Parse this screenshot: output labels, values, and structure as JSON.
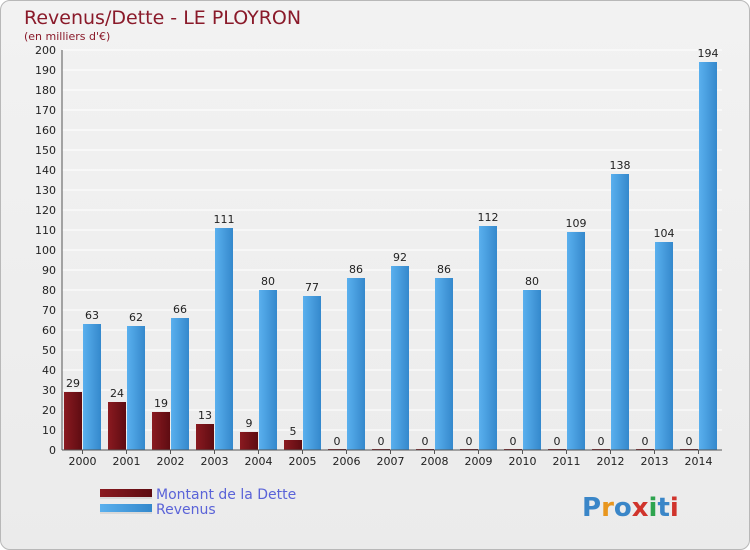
{
  "chart_data": {
    "type": "bar",
    "title": "Revenus/Dette - LE PLOYRON",
    "subtitle": "(en milliers d'€)",
    "categories": [
      "2000",
      "2001",
      "2002",
      "2003",
      "2004",
      "2005",
      "2006",
      "2007",
      "2008",
      "2009",
      "2010",
      "2011",
      "2012",
      "2013",
      "2014"
    ],
    "series": [
      {
        "name": "Montant de la Dette",
        "color": "#7a1218",
        "values": [
          29,
          24,
          19,
          13,
          9,
          5,
          0,
          0,
          0,
          0,
          0,
          0,
          0,
          0,
          0
        ]
      },
      {
        "name": "Revenus",
        "color": "#4a9fe0",
        "values": [
          63,
          62,
          66,
          111,
          80,
          77,
          86,
          92,
          86,
          112,
          80,
          109,
          138,
          104,
          194
        ]
      }
    ],
    "ylim": [
      0,
      200
    ],
    "ytick_step": 10,
    "grid": true,
    "legend_position": "bottom-left"
  },
  "branding": {
    "logo_letters": [
      "P",
      "r",
      "o",
      "x",
      "i",
      "t",
      "i"
    ],
    "logo_colors": [
      "#3a86c8",
      "#e8961e",
      "#3a86c8",
      "#d0342c",
      "#2ea44f",
      "#3a86c8",
      "#d0342c"
    ]
  }
}
